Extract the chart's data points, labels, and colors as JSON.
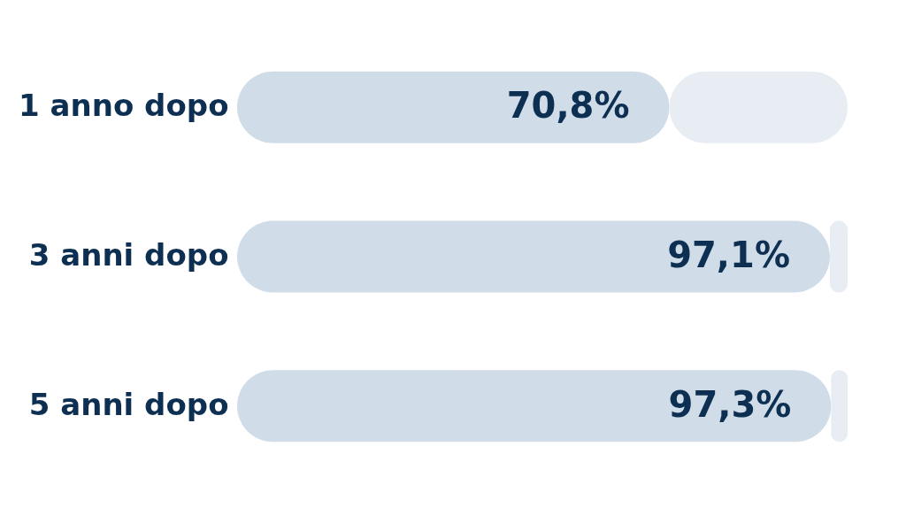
{
  "chart_data": {
    "type": "bar",
    "orientation": "horizontal",
    "stacked": true,
    "categories": [
      "1 anno dopo",
      "3 anni dopo",
      "5 anni dopo"
    ],
    "xlim": [
      0,
      100
    ],
    "tick_labels": "y",
    "grid": false,
    "legend": false,
    "series": [
      {
        "color": "#d0dde9",
        "values": [
          70.8,
          97.1,
          97.3
        ],
        "value_labels": [
          "70,8%",
          "97,1%",
          "97,3%"
        ]
      },
      {
        "color": "#e7edf2",
        "values": [
          29.2,
          2.9,
          2.7
        ]
      }
    ]
  }
}
